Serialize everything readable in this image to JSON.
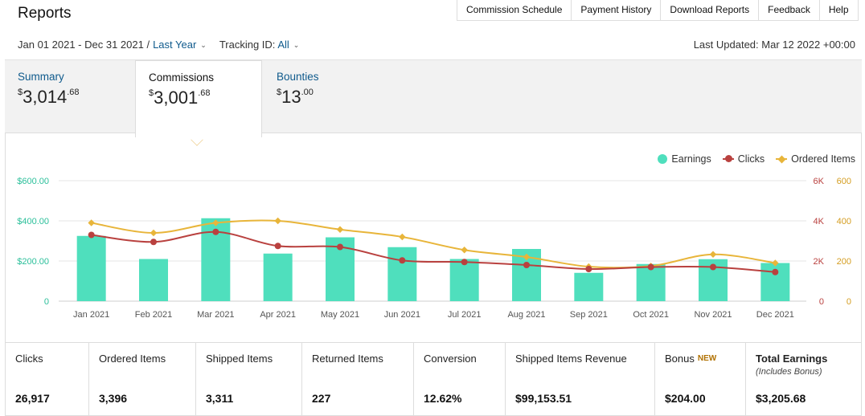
{
  "header": {
    "title": "Reports"
  },
  "topnav": [
    "Commission Schedule",
    "Payment History",
    "Download Reports",
    "Feedback",
    "Help"
  ],
  "filters": {
    "date_range": "Jan 01 2021 - Dec 31 2021 /",
    "period": "Last Year",
    "tracking_label": "Tracking ID:",
    "tracking_value": "All",
    "last_updated": "Last Updated: Mar 12 2022 +00:00"
  },
  "tabs": {
    "summary": {
      "label": "Summary",
      "currency": "$",
      "whole": "3,014",
      "cents": ".68"
    },
    "commissions": {
      "label": "Commissions",
      "currency": "$",
      "whole": "3,001",
      "cents": ".68"
    },
    "bounties": {
      "label": "Bounties",
      "currency": "$",
      "whole": "13",
      "cents": ".00"
    }
  },
  "legend": {
    "earnings": "Earnings",
    "clicks": "Clicks",
    "ordered": "Ordered Items"
  },
  "colors": {
    "earnings": "#4fdfbd",
    "clicks": "#b9413f",
    "ordered": "#e8b53a",
    "link": "#0f5a8c"
  },
  "chart_data": {
    "type": "bar",
    "categories": [
      "Jan 2021",
      "Feb 2021",
      "Mar 2021",
      "Apr 2021",
      "May 2021",
      "Jun 2021",
      "Jul 2021",
      "Aug 2021",
      "Sep 2021",
      "Oct 2021",
      "Nov 2021",
      "Dec 2021"
    ],
    "series": [
      {
        "name": "Earnings",
        "type": "bar",
        "axis": "left",
        "values": [
          325,
          210,
          413,
          237,
          318,
          269,
          210,
          260,
          141,
          185,
          209,
          190
        ]
      },
      {
        "name": "Clicks",
        "type": "line",
        "axis": "right-1",
        "values": [
          3300,
          2950,
          3450,
          2750,
          2700,
          2030,
          1950,
          1800,
          1600,
          1700,
          1700,
          1450
        ]
      },
      {
        "name": "Ordered Items",
        "type": "line",
        "axis": "right-2",
        "values": [
          390,
          340,
          390,
          400,
          357,
          320,
          255,
          220,
          172,
          175,
          233,
          190
        ]
      }
    ],
    "left_axis": {
      "ticks": [
        "0",
        "$200.00",
        "$400.00",
        "$600.00"
      ],
      "ylim": [
        0,
        600
      ]
    },
    "right_axis_1": {
      "ticks": [
        "0",
        "2K",
        "4K",
        "6K"
      ],
      "ylim": [
        0,
        6000
      ]
    },
    "right_axis_2": {
      "ticks": [
        "0",
        "200",
        "400",
        "600"
      ],
      "ylim": [
        0,
        600
      ]
    },
    "grid": true,
    "legend_position": "top-right"
  },
  "stats": [
    {
      "label": "Clicks",
      "value": "26,917"
    },
    {
      "label": "Ordered Items",
      "value": "3,396"
    },
    {
      "label": "Shipped Items",
      "value": "3,311"
    },
    {
      "label": "Returned Items",
      "value": "227"
    },
    {
      "label": "Conversion",
      "value": "12.62%"
    },
    {
      "label": "Shipped Items Revenue",
      "value": "$99,153.51"
    },
    {
      "label": "Bonus",
      "badge": "NEW",
      "value": "$204.00"
    },
    {
      "label": "Total Earnings",
      "sub": "(Includes Bonus)",
      "value": "$3,205.68"
    }
  ]
}
